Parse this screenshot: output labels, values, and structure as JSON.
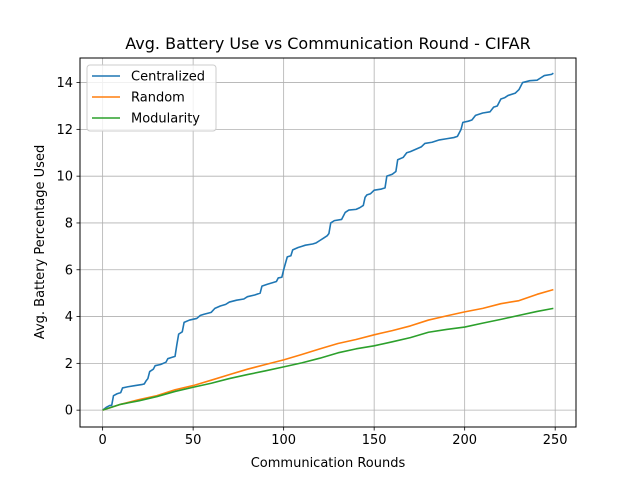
{
  "chart_data": {
    "type": "line",
    "title": "Avg. Battery Use vs Communication Round - CIFAR",
    "xlabel": "Communication Rounds",
    "ylabel": "Avg. Battery Percentage Used",
    "xlim": [
      -12.5,
      261.5
    ],
    "ylim": [
      -0.72,
      15.05
    ],
    "xticks": [
      0,
      50,
      100,
      150,
      200,
      250
    ],
    "yticks": [
      0,
      2,
      4,
      6,
      8,
      10,
      12,
      14
    ],
    "grid": true,
    "legend_position": "top-left",
    "series": [
      {
        "name": "Centralized",
        "color": "#1f77b4",
        "points": [
          [
            0,
            0
          ],
          [
            2,
            0.12
          ],
          [
            4,
            0.2
          ],
          [
            5,
            0.2
          ],
          [
            6,
            0.62
          ],
          [
            8,
            0.7
          ],
          [
            10,
            0.75
          ],
          [
            11,
            0.95
          ],
          [
            14,
            1.0
          ],
          [
            18,
            1.05
          ],
          [
            22,
            1.1
          ],
          [
            23,
            1.12
          ],
          [
            24,
            1.25
          ],
          [
            25,
            1.35
          ],
          [
            26,
            1.65
          ],
          [
            28,
            1.75
          ],
          [
            29,
            1.9
          ],
          [
            32,
            1.95
          ],
          [
            35,
            2.05
          ],
          [
            36,
            2.2
          ],
          [
            38,
            2.25
          ],
          [
            40,
            2.3
          ],
          [
            41,
            2.8
          ],
          [
            42,
            3.25
          ],
          [
            44,
            3.35
          ],
          [
            45,
            3.75
          ],
          [
            48,
            3.85
          ],
          [
            52,
            3.92
          ],
          [
            54,
            4.05
          ],
          [
            56,
            4.1
          ],
          [
            60,
            4.18
          ],
          [
            62,
            4.35
          ],
          [
            65,
            4.45
          ],
          [
            68,
            4.52
          ],
          [
            70,
            4.62
          ],
          [
            74,
            4.7
          ],
          [
            78,
            4.75
          ],
          [
            80,
            4.85
          ],
          [
            84,
            4.92
          ],
          [
            87,
            5.0
          ],
          [
            88,
            5.3
          ],
          [
            91,
            5.38
          ],
          [
            94,
            5.45
          ],
          [
            96,
            5.5
          ],
          [
            97,
            5.65
          ],
          [
            99,
            5.68
          ],
          [
            100,
            6.0
          ],
          [
            102,
            6.55
          ],
          [
            104,
            6.6
          ],
          [
            105,
            6.85
          ],
          [
            108,
            6.95
          ],
          [
            110,
            7.0
          ],
          [
            112,
            7.05
          ],
          [
            116,
            7.1
          ],
          [
            118,
            7.15
          ],
          [
            120,
            7.25
          ],
          [
            122,
            7.35
          ],
          [
            124,
            7.45
          ],
          [
            125,
            7.55
          ],
          [
            126,
            8.0
          ],
          [
            128,
            8.1
          ],
          [
            132,
            8.15
          ],
          [
            134,
            8.45
          ],
          [
            136,
            8.55
          ],
          [
            140,
            8.58
          ],
          [
            142,
            8.65
          ],
          [
            144,
            8.75
          ],
          [
            145,
            9.1
          ],
          [
            146,
            9.2
          ],
          [
            148,
            9.25
          ],
          [
            150,
            9.4
          ],
          [
            154,
            9.45
          ],
          [
            156,
            9.5
          ],
          [
            157,
            10.0
          ],
          [
            160,
            10.08
          ],
          [
            162,
            10.2
          ],
          [
            163,
            10.7
          ],
          [
            166,
            10.8
          ],
          [
            168,
            11.0
          ],
          [
            170,
            11.05
          ],
          [
            173,
            11.15
          ],
          [
            176,
            11.25
          ],
          [
            178,
            11.4
          ],
          [
            182,
            11.45
          ],
          [
            186,
            11.55
          ],
          [
            190,
            11.6
          ],
          [
            194,
            11.65
          ],
          [
            196,
            11.7
          ],
          [
            198,
            12.0
          ],
          [
            199,
            12.3
          ],
          [
            202,
            12.35
          ],
          [
            204,
            12.4
          ],
          [
            206,
            12.6
          ],
          [
            210,
            12.7
          ],
          [
            214,
            12.75
          ],
          [
            216,
            12.95
          ],
          [
            218,
            13.0
          ],
          [
            220,
            13.3
          ],
          [
            222,
            13.35
          ],
          [
            224,
            13.45
          ],
          [
            228,
            13.55
          ],
          [
            230,
            13.7
          ],
          [
            232,
            14.0
          ],
          [
            236,
            14.08
          ],
          [
            240,
            14.1
          ],
          [
            242,
            14.2
          ],
          [
            244,
            14.3
          ],
          [
            248,
            14.35
          ],
          [
            249,
            14.4
          ]
        ]
      },
      {
        "name": "Random",
        "color": "#ff7f0e",
        "points": [
          [
            0,
            0
          ],
          [
            10,
            0.25
          ],
          [
            20,
            0.45
          ],
          [
            30,
            0.62
          ],
          [
            40,
            0.87
          ],
          [
            50,
            1.05
          ],
          [
            60,
            1.28
          ],
          [
            70,
            1.52
          ],
          [
            80,
            1.75
          ],
          [
            90,
            1.95
          ],
          [
            100,
            2.15
          ],
          [
            110,
            2.38
          ],
          [
            120,
            2.62
          ],
          [
            130,
            2.85
          ],
          [
            140,
            3.02
          ],
          [
            150,
            3.22
          ],
          [
            160,
            3.4
          ],
          [
            170,
            3.6
          ],
          [
            180,
            3.85
          ],
          [
            190,
            4.03
          ],
          [
            200,
            4.2
          ],
          [
            210,
            4.35
          ],
          [
            220,
            4.55
          ],
          [
            230,
            4.68
          ],
          [
            240,
            4.95
          ],
          [
            249,
            5.15
          ]
        ]
      },
      {
        "name": "Modularity",
        "color": "#2ca02c",
        "points": [
          [
            0,
            0
          ],
          [
            10,
            0.25
          ],
          [
            20,
            0.4
          ],
          [
            30,
            0.58
          ],
          [
            40,
            0.8
          ],
          [
            50,
            0.98
          ],
          [
            60,
            1.15
          ],
          [
            70,
            1.35
          ],
          [
            80,
            1.52
          ],
          [
            90,
            1.68
          ],
          [
            100,
            1.85
          ],
          [
            110,
            2.02
          ],
          [
            120,
            2.22
          ],
          [
            130,
            2.45
          ],
          [
            140,
            2.62
          ],
          [
            150,
            2.75
          ],
          [
            160,
            2.92
          ],
          [
            170,
            3.1
          ],
          [
            180,
            3.33
          ],
          [
            190,
            3.45
          ],
          [
            200,
            3.55
          ],
          [
            210,
            3.72
          ],
          [
            220,
            3.88
          ],
          [
            230,
            4.05
          ],
          [
            240,
            4.22
          ],
          [
            249,
            4.35
          ]
        ]
      }
    ]
  }
}
